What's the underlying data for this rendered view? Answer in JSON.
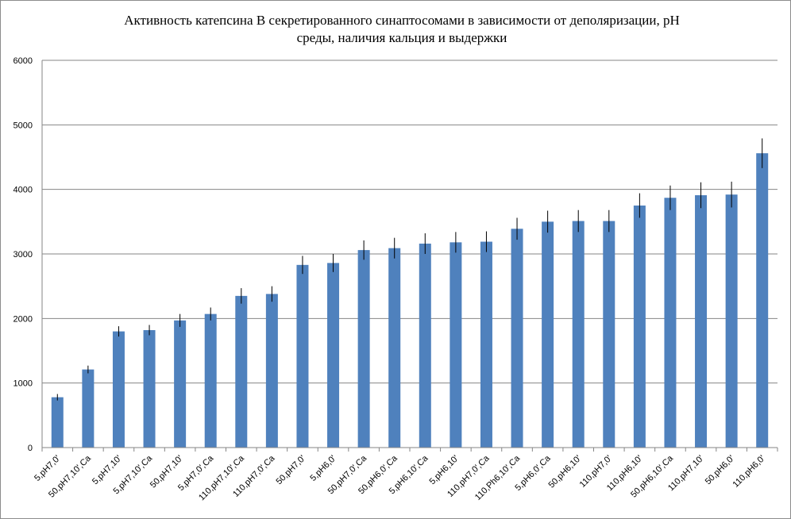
{
  "chart_data": {
    "type": "bar",
    "title_line1": "Активность катепсина В секретированного синаптосомами в зависимости от деполяризации, рН",
    "title_line2": "среды, наличия кальция и выдержки",
    "xlabel": "",
    "ylabel": "",
    "ylim": [
      0,
      6000
    ],
    "yticks": [
      "0",
      "1000",
      "2000",
      "3000",
      "4000",
      "5000",
      "6000"
    ],
    "grid": true,
    "legend": "none",
    "bar_color": "#4f81bd",
    "error_color": "#000000",
    "categories": [
      "5,pH7,0'",
      "50,pH7,10',Ca",
      "5,pH7,10'",
      "5,pH7,10',Ca",
      "50,pH7,10'",
      "5,pH7,0',Ca",
      "110,pH7,10',Ca",
      "110,pH7,0',Ca",
      "50,pH7,0'",
      "5,pH6,0'",
      "50,pH7,0',Ca",
      "50,pH6,0',Ca",
      "5,pH6,10',Ca",
      "5,pH6,10'",
      "110,pH7,0',Ca",
      "110,Ph6,10',Ca",
      "5,pH6,0',Ca",
      "50,pH6,10'",
      "110,pH7,0'",
      "110,pH6,10'",
      "50,pH6,10',Ca",
      "110,pH7,10'",
      "50,pH6,0'",
      "110,pH6,0'"
    ],
    "values": [
      780,
      1210,
      1800,
      1820,
      1970,
      2070,
      2350,
      2380,
      2830,
      2860,
      3060,
      3090,
      3160,
      3180,
      3190,
      3390,
      3500,
      3510,
      3510,
      3750,
      3870,
      3910,
      3920,
      4560
    ],
    "errors": [
      50,
      60,
      80,
      80,
      100,
      100,
      120,
      120,
      140,
      140,
      150,
      160,
      160,
      160,
      160,
      170,
      170,
      170,
      170,
      190,
      190,
      200,
      200,
      230
    ]
  }
}
